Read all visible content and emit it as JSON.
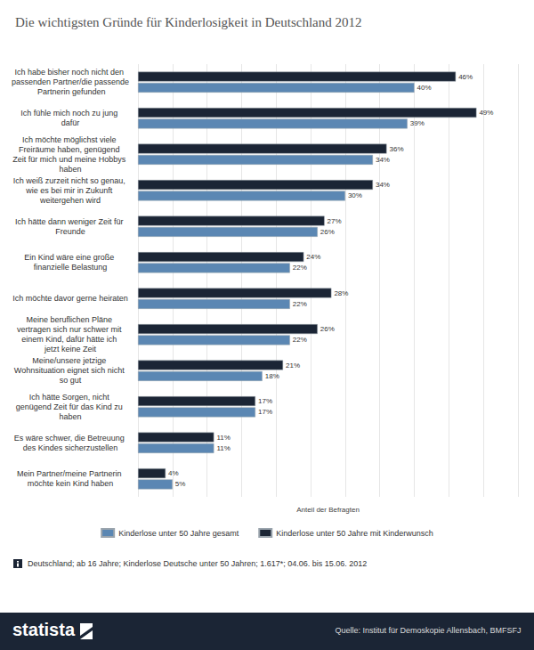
{
  "chart_data": {
    "type": "bar",
    "orientation": "horizontal",
    "title": "Die wichtigsten Gründe für Kinderlosigkeit in Deutschland 2012",
    "x_label": "Anteil der Befragten",
    "categories": [
      "Ich habe bisher noch nicht den passenden Partner/die passende Partnerin gefunden",
      "Ich fühle mich noch zu jung dafür",
      "Ich möchte möglichst viele Freiräume haben, genügend Zeit für mich und meine Hobbys haben",
      "Ich weiß zurzeit nicht so genau, wie es bei mir in Zukunft weitergehen wird",
      "Ich hätte dann weniger Zeit für Freunde",
      "Ein Kind wäre eine große finanzielle Belastung",
      "Ich möchte davor gerne heiraten",
      "Meine beruflichen Pläne vertragen sich nur schwer mit einem Kind, dafür hätte ich jetzt keine Zeit",
      "Meine/unsere jetzige Wohnsituation eignet sich nicht so gut",
      "Ich hätte Sorgen, nicht genügend Zeit für das Kind zu haben",
      "Es wäre schwer, die Betreuung des Kindes sicherzustellen",
      "Mein Partner/meine Partnerin möchte kein Kind haben"
    ],
    "series": [
      {
        "name": "Kinderlose unter 50 Jahre gesamt",
        "color": "#5b87b3",
        "values": [
          40,
          39,
          34,
          30,
          26,
          22,
          22,
          22,
          18,
          17,
          11,
          5
        ],
        "value_labels": [
          "40%",
          "39%",
          "34%",
          "30%",
          "26%",
          "22%",
          "22%",
          "22%",
          "18%",
          "17%",
          "11%",
          "5%"
        ]
      },
      {
        "name": "Kinderlose unter 50 Jahre mit Kinderwunsch",
        "color": "#1b2535",
        "values": [
          46,
          49,
          36,
          34,
          27,
          24,
          28,
          26,
          21,
          17,
          11,
          4
        ],
        "value_labels": [
          "46%",
          "49%",
          "36%",
          "34%",
          "27%",
          "24%",
          "28%",
          "26%",
          "21%",
          "17%",
          "11%",
          "4%"
        ]
      }
    ],
    "xlim": [
      0,
      55
    ],
    "xticks": [
      0,
      5,
      10,
      15,
      20,
      25,
      30,
      35,
      40,
      45,
      50,
      55
    ],
    "grid": true,
    "tick_labels": "y",
    "data_labels": true,
    "legend": "bottom",
    "notes": "Deutschland; ab 16 Jahre; Kinderlose Deutsche unter 50 Jahren; 1.617*; 04.06. bis 15.06. 2012",
    "source": "Quelle: Institut für Demoskopie Allensbach, BMFSFJ",
    "brand": "statista"
  }
}
